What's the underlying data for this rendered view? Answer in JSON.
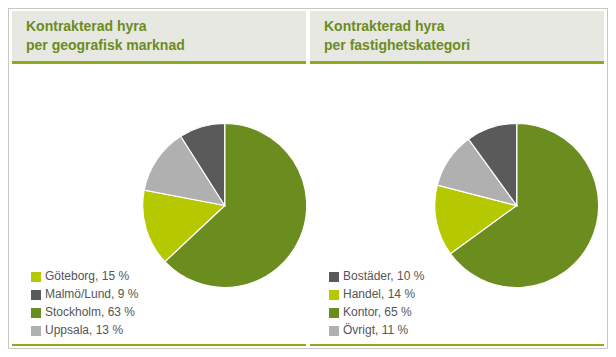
{
  "chart_data": [
    {
      "type": "pie",
      "title": "Kontrakterad hyra\nper geografisk marknad",
      "categories": [
        "Stockholm, 63 %",
        "Göteborg, 15 %",
        "Uppsala, 13 %",
        "Malmö/Lund, 9 %"
      ],
      "values": [
        63,
        15,
        13,
        9
      ],
      "colors": [
        "#6b8c1e",
        "#b5c800",
        "#b0b0b0",
        "#5a5a5a"
      ]
    },
    {
      "type": "pie",
      "title": "Kontrakterad hyra\nper fastighetskategori",
      "categories": [
        "Kontor, 65 %",
        "Handel, 14 %",
        "Övrigt, 11 %",
        "Bostäder, 10 %"
      ],
      "values": [
        65,
        14,
        11,
        10
      ],
      "colors": [
        "#6b8c1e",
        "#b5c800",
        "#b0b0b0",
        "#5a5a5a"
      ]
    }
  ]
}
